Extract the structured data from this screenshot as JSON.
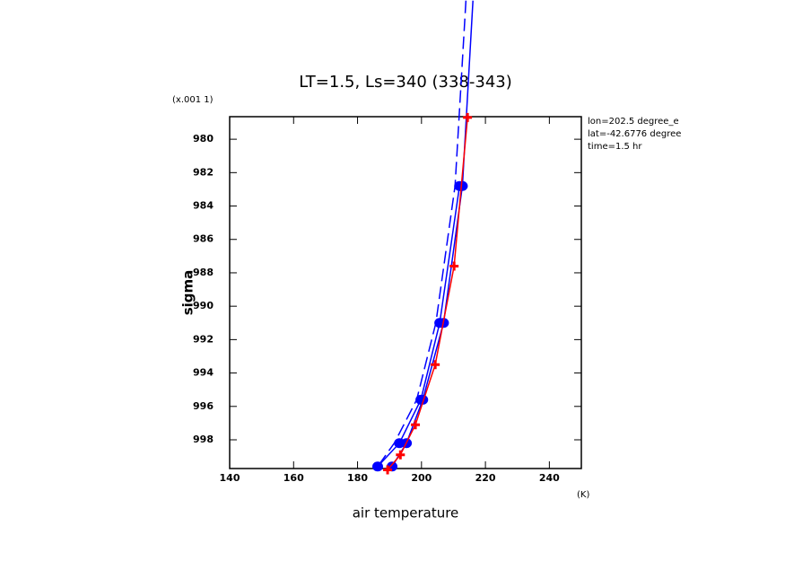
{
  "chart_data": {
    "type": "profile",
    "title": "LT=1.5, Ls=340 (338-343)",
    "x_label": "air temperature",
    "y_label": "sigma",
    "x_unit": "(K)",
    "y_unit": "(x.001 1)",
    "annotations": [
      "lon=202.5 degree_e",
      "lat=-42.6776 degree",
      "time=1.5 hr"
    ],
    "xlim": [
      140,
      250
    ],
    "ylim": [
      978.65,
      999.72
    ],
    "y_inverted": true,
    "xticks": [
      140,
      160,
      180,
      200,
      220,
      240
    ],
    "yticks": [
      980,
      982,
      984,
      986,
      988,
      990,
      992,
      994,
      996,
      998
    ],
    "series": [
      {
        "color": "#0000ff",
        "dash": false,
        "marker": "disc",
        "x": [
          211.9,
          205.7,
          199.8,
          193.1,
          186.3
        ],
        "y": [
          982.8,
          991.0,
          995.6,
          998.2,
          999.6
        ]
      },
      {
        "color": "#0000ff",
        "dash": false,
        "marker": "disc",
        "x": [
          216.1,
          212.8,
          206.9,
          200.4,
          195.3,
          190.8
        ],
        "y": [
          971.7,
          982.8,
          991.0,
          995.6,
          998.2,
          999.6
        ]
      },
      {
        "color": "#0000ff",
        "dash": true,
        "marker": "none",
        "x": [
          213.9,
          210.5,
          204.5,
          198.5,
          191.5,
          186.3
        ],
        "y": [
          971.7,
          982.8,
          991.0,
          995.6,
          998.2,
          999.6
        ]
      },
      {
        "color": "#ff0000",
        "dash": false,
        "marker": "plus",
        "x": [
          214.4,
          210.2,
          204.3,
          198.1,
          193.4,
          189.4
        ],
        "y": [
          978.7,
          987.6,
          993.5,
          997.1,
          998.9,
          999.8
        ]
      }
    ]
  }
}
